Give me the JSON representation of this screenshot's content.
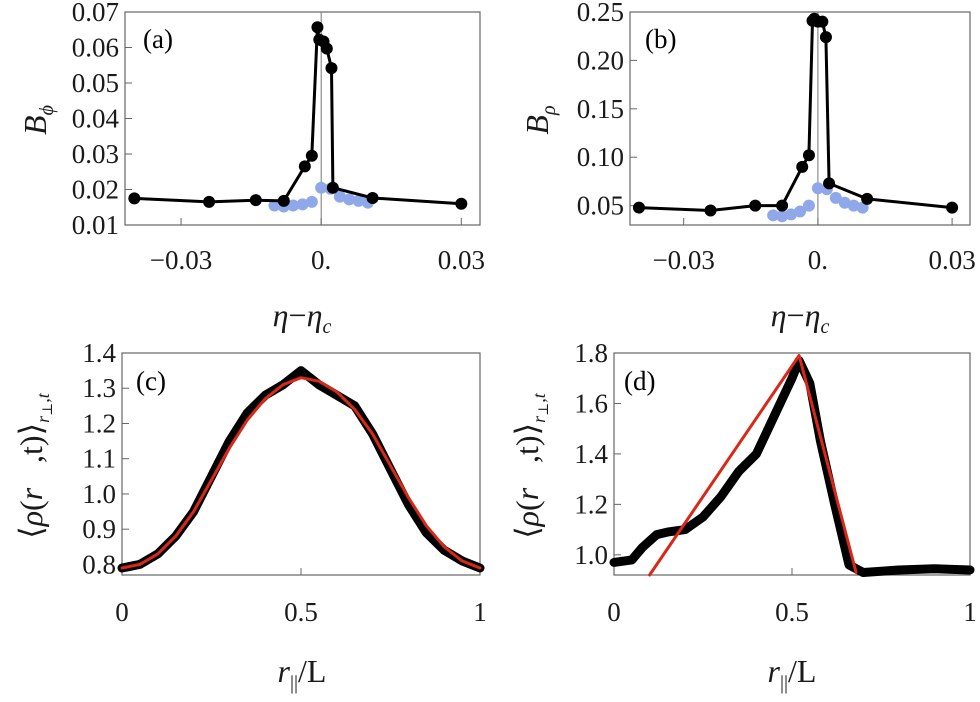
{
  "chart_data": [
    {
      "panel_label": "(a)",
      "type": "line",
      "xlabel": "η−η_c",
      "ylabel": "B_ϕ",
      "xlim": [
        -0.042,
        0.034
      ],
      "ylim": [
        0.01,
        0.07
      ],
      "xticks": [
        -0.03,
        0.0,
        0.03
      ],
      "xtick_labels": [
        "−0.03",
        "0.",
        "0.03"
      ],
      "yticks": [
        0.01,
        0.02,
        0.03,
        0.04,
        0.05,
        0.06,
        0.07
      ],
      "ytick_labels": [
        "0.01",
        "0.02",
        "0.03",
        "0.04",
        "0.05",
        "0.06",
        "0.07"
      ],
      "vline_x": 0.0,
      "series": [
        {
          "color": "#000000",
          "x": [
            -0.04,
            -0.024,
            -0.014,
            -0.008,
            -0.0035,
            -0.002,
            -0.0008,
            -0.0004,
            0.0005,
            0.0012,
            0.0022,
            0.0025,
            0.011,
            0.03
          ],
          "y": [
            0.0175,
            0.0165,
            0.017,
            0.0168,
            0.0265,
            0.0295,
            0.0657,
            0.0622,
            0.0617,
            0.0597,
            0.0542,
            0.0205,
            0.0176,
            0.016
          ]
        },
        {
          "color": "#8fa8ea",
          "x": [
            -0.01,
            -0.008,
            -0.006,
            -0.004,
            -0.002,
            0.0,
            0.002,
            0.004,
            0.006,
            0.008,
            0.01
          ],
          "y": [
            0.0155,
            0.0152,
            0.0155,
            0.0158,
            0.0165,
            0.0205,
            0.0202,
            0.018,
            0.0172,
            0.0168,
            0.0163
          ]
        }
      ]
    },
    {
      "panel_label": "(b)",
      "type": "line",
      "xlabel": "η−η_c",
      "ylabel": "B_ρ",
      "xlim": [
        -0.042,
        0.034
      ],
      "ylim": [
        0.03,
        0.25
      ],
      "xticks": [
        -0.03,
        0.0,
        0.03
      ],
      "xtick_labels": [
        "−0.03",
        "0.",
        "0.03"
      ],
      "yticks": [
        0.05,
        0.1,
        0.15,
        0.2,
        0.25
      ],
      "ytick_labels": [
        "0.05",
        "0.10",
        "0.15",
        "0.20",
        "0.25"
      ],
      "vline_x": 0.0,
      "series": [
        {
          "color": "#000000",
          "x": [
            -0.04,
            -0.024,
            -0.014,
            -0.008,
            -0.0035,
            -0.002,
            -0.0012,
            -0.0008,
            0.0,
            0.001,
            0.0018,
            0.0025,
            0.011,
            0.03
          ],
          "y": [
            0.048,
            0.045,
            0.05,
            0.05,
            0.09,
            0.102,
            0.241,
            0.243,
            0.24,
            0.24,
            0.224,
            0.073,
            0.057,
            0.048
          ]
        },
        {
          "color": "#8fa8ea",
          "x": [
            -0.01,
            -0.008,
            -0.006,
            -0.004,
            -0.002,
            0.0,
            0.002,
            0.004,
            0.006,
            0.008,
            0.01
          ],
          "y": [
            0.04,
            0.039,
            0.041,
            0.044,
            0.05,
            0.068,
            0.067,
            0.058,
            0.053,
            0.05,
            0.048
          ]
        }
      ]
    },
    {
      "panel_label": "(c)",
      "type": "line",
      "xlabel": "r_∥/L",
      "ylabel": "⟨ρ(r⃗,t)⟩_{r⊥,t}",
      "xlim": [
        0,
        1
      ],
      "ylim": [
        0.77,
        1.4
      ],
      "xticks": [
        0,
        0.5,
        1
      ],
      "xtick_labels": [
        "0",
        "0.5",
        "1"
      ],
      "yticks": [
        0.8,
        0.9,
        1.0,
        1.1,
        1.2,
        1.3,
        1.4
      ],
      "ytick_labels": [
        "0.8",
        "0.9",
        "1.0",
        "1.1",
        "1.2",
        "1.3",
        "1.4"
      ],
      "series": [
        {
          "color": "#000000",
          "x": [
            0,
            0.05,
            0.1,
            0.15,
            0.2,
            0.25,
            0.3,
            0.35,
            0.4,
            0.45,
            0.5,
            0.55,
            0.6,
            0.65,
            0.7,
            0.75,
            0.8,
            0.85,
            0.9,
            0.95,
            1.0
          ],
          "y": [
            0.79,
            0.8,
            0.83,
            0.88,
            0.95,
            1.05,
            1.15,
            1.23,
            1.28,
            1.31,
            1.35,
            1.31,
            1.28,
            1.25,
            1.17,
            1.07,
            0.97,
            0.89,
            0.84,
            0.81,
            0.79
          ]
        },
        {
          "color": "#d92818",
          "x": [
            0,
            0.05,
            0.1,
            0.15,
            0.2,
            0.25,
            0.3,
            0.35,
            0.4,
            0.45,
            0.5,
            0.55,
            0.6,
            0.65,
            0.7,
            0.75,
            0.8,
            0.85,
            0.9,
            0.95,
            1.0
          ],
          "y": [
            0.79,
            0.8,
            0.83,
            0.88,
            0.95,
            1.04,
            1.13,
            1.21,
            1.27,
            1.31,
            1.33,
            1.32,
            1.29,
            1.24,
            1.17,
            1.08,
            0.99,
            0.91,
            0.85,
            0.81,
            0.79
          ]
        }
      ]
    },
    {
      "panel_label": "(d)",
      "type": "line",
      "xlabel": "r_∥/L",
      "ylabel": "⟨ρ(r⃗,t)⟩_{r⊥,t}",
      "xlim": [
        0,
        1
      ],
      "ylim": [
        0.92,
        1.8
      ],
      "xticks": [
        0,
        0.5,
        1
      ],
      "xtick_labels": [
        "0",
        "0.5",
        "1"
      ],
      "yticks": [
        1.0,
        1.2,
        1.4,
        1.6,
        1.8
      ],
      "ytick_labels": [
        "1.0",
        "1.2",
        "1.4",
        "1.6",
        "1.8"
      ],
      "series": [
        {
          "color": "#000000",
          "x": [
            0,
            0.05,
            0.08,
            0.12,
            0.15,
            0.2,
            0.25,
            0.3,
            0.35,
            0.4,
            0.45,
            0.5,
            0.52,
            0.55,
            0.58,
            0.62,
            0.66,
            0.7,
            0.8,
            0.9,
            1.0
          ],
          "y": [
            0.97,
            0.98,
            1.03,
            1.08,
            1.09,
            1.1,
            1.15,
            1.23,
            1.33,
            1.4,
            1.55,
            1.7,
            1.77,
            1.68,
            1.45,
            1.2,
            0.96,
            0.93,
            0.94,
            0.945,
            0.94
          ]
        },
        {
          "color": "#d92818",
          "x": [
            0.1,
            0.52,
            0.68
          ],
          "y": [
            0.92,
            1.79,
            0.93
          ]
        }
      ]
    }
  ]
}
